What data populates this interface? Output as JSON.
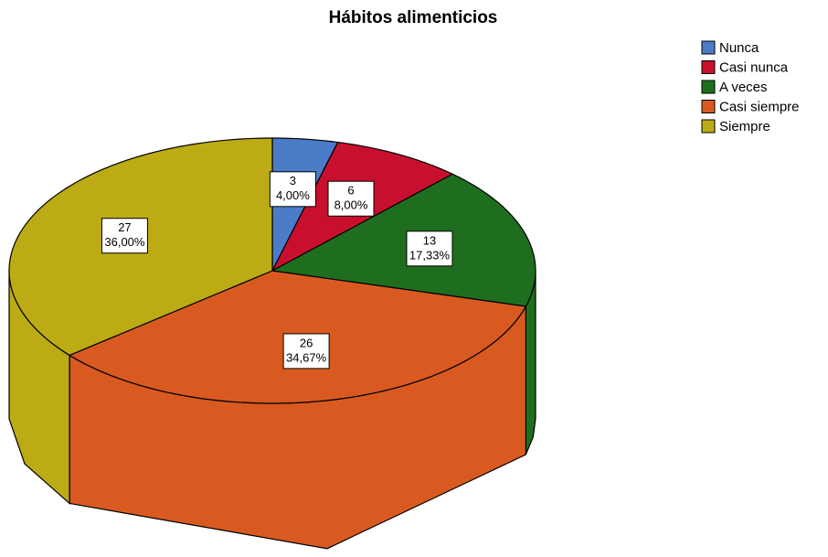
{
  "chart_data": {
    "type": "pie3d",
    "title": "Hábitos alimenticios",
    "categories": [
      "Nunca",
      "Casi nunca",
      "A veces",
      "Casi siempre",
      "Siempre"
    ],
    "values": [
      3,
      6,
      13,
      26,
      27
    ],
    "percent_labels": [
      "4,00%",
      "8,00%",
      "17,33%",
      "34,67%",
      "36,00%"
    ],
    "colors": [
      "#4a7cc8",
      "#c8102e",
      "#1f6e1f",
      "#d95a20",
      "#bcab14"
    ],
    "legend": "top-right"
  }
}
